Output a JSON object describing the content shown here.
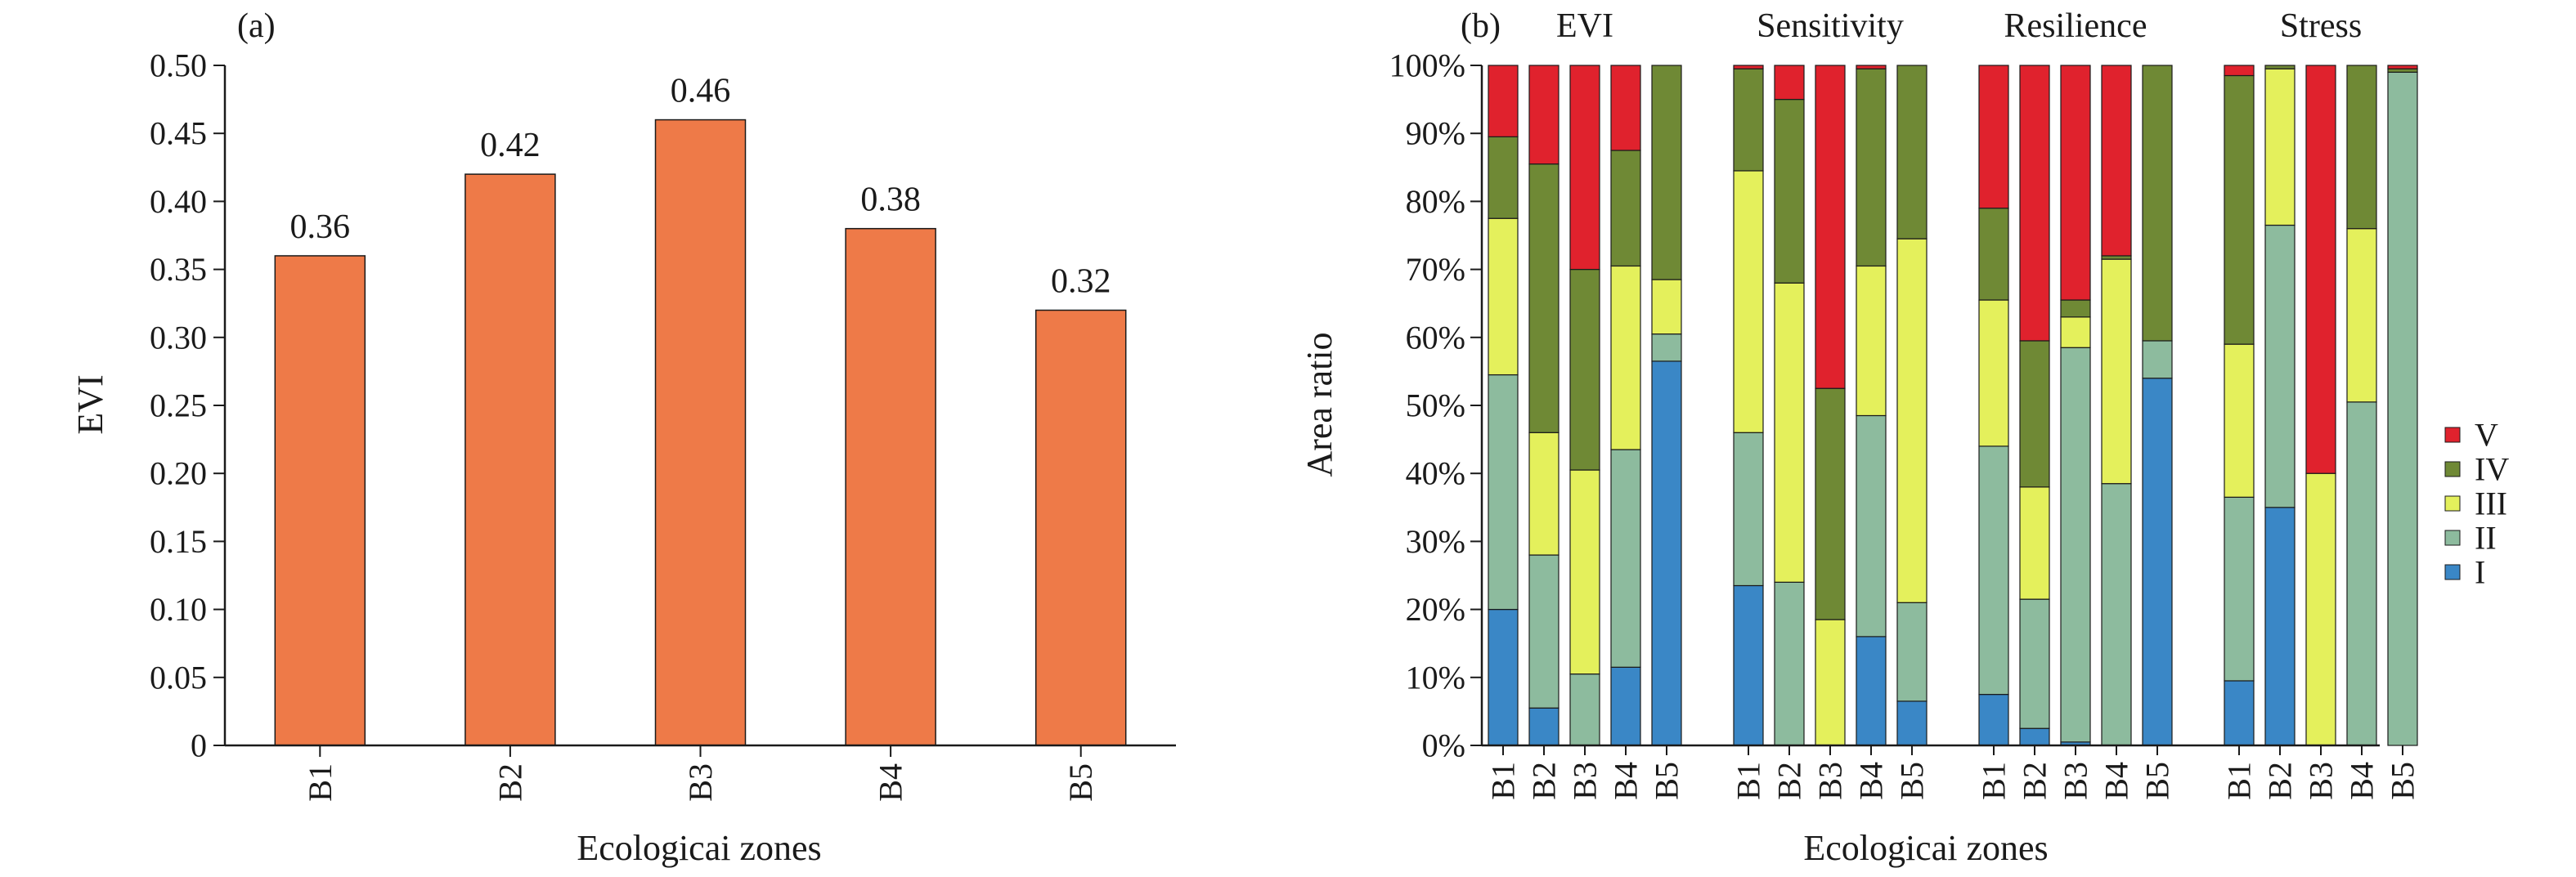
{
  "chart_data": [
    {
      "type": "bar",
      "panel_label": "(a)",
      "xlabel": "Ecologicai zones",
      "ylabel": "EVI",
      "categories": [
        "B1",
        "B2",
        "B3",
        "B4",
        "B5"
      ],
      "values": [
        0.36,
        0.42,
        0.46,
        0.38,
        0.32
      ],
      "data_labels": [
        "0.36",
        "0.42",
        "0.46",
        "0.38",
        "0.32"
      ],
      "ylim": [
        0,
        0.5
      ],
      "yticks": [
        "0",
        "0.05",
        "0.10",
        "0.15",
        "0.20",
        "0.25",
        "0.30",
        "0.35",
        "0.40",
        "0.45",
        "0.50"
      ],
      "bar_color": "#EE7A48",
      "grid": false
    },
    {
      "type": "bar",
      "stacked": true,
      "panel_label": "(b)",
      "xlabel": "Ecologicai zones",
      "ylabel": "Area ratio",
      "ylim": [
        0,
        100
      ],
      "yticks": [
        "0%",
        "10%",
        "20%",
        "30%",
        "40%",
        "50%",
        "60%",
        "70%",
        "80%",
        "90%",
        "100%"
      ],
      "categories": [
        "B1",
        "B2",
        "B3",
        "B4",
        "B5"
      ],
      "legend_position": "right",
      "grid": false,
      "series": [
        {
          "name": "I",
          "color": "#3A87C6"
        },
        {
          "name": "II",
          "color": "#8DBB9E"
        },
        {
          "name": "III",
          "color": "#E4F05C"
        },
        {
          "name": "IV",
          "color": "#6F8935"
        },
        {
          "name": "V",
          "color": "#E0222D"
        }
      ],
      "legend_order": [
        "V",
        "IV",
        "III",
        "II",
        "I"
      ],
      "groups": [
        {
          "title": "EVI",
          "stacks": [
            [
              20,
              34.5,
              23,
              12,
              10.5
            ],
            [
              5.5,
              22.5,
              18,
              39.5,
              14.5
            ],
            [
              0,
              10.5,
              30,
              29.5,
              30
            ],
            [
              11.5,
              32,
              27,
              17,
              12.5
            ],
            [
              56.5,
              4,
              8,
              31.5,
              0
            ]
          ]
        },
        {
          "title": "Sensitivity",
          "stacks": [
            [
              23.5,
              22.5,
              38.5,
              15,
              0.5
            ],
            [
              0,
              24,
              44,
              27,
              5
            ],
            [
              0,
              0,
              18.5,
              34,
              47.5
            ],
            [
              16,
              32.5,
              22,
              29,
              0.5
            ],
            [
              6.5,
              14.5,
              53.5,
              25.5,
              0
            ]
          ]
        },
        {
          "title": "Resilience",
          "stacks": [
            [
              7.5,
              36.5,
              21.5,
              13.5,
              21
            ],
            [
              2.5,
              19,
              16.5,
              21.5,
              40.5
            ],
            [
              0.5,
              58,
              4.5,
              2.5,
              34.5
            ],
            [
              0,
              38.5,
              33,
              0.5,
              28
            ],
            [
              54,
              5.5,
              0,
              40.5,
              0
            ]
          ]
        },
        {
          "title": "Stress",
          "stacks": [
            [
              9.5,
              27,
              22.5,
              39.5,
              1.5
            ],
            [
              35,
              41.5,
              23,
              0.5,
              0
            ],
            [
              0,
              0,
              40,
              0,
              60
            ],
            [
              0,
              50.5,
              25.5,
              24,
              0
            ],
            [
              0,
              99,
              0,
              0.5,
              0.5
            ]
          ]
        }
      ]
    }
  ]
}
